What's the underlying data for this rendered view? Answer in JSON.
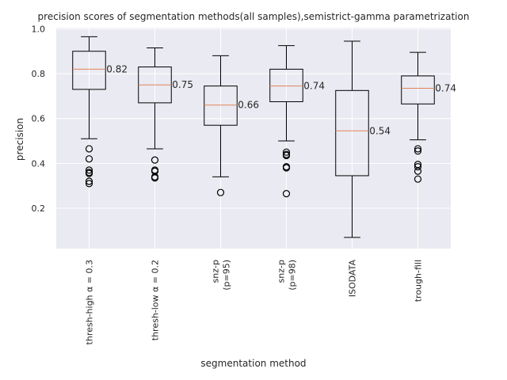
{
  "chart_data": {
    "type": "box",
    "title": "precision scores of segmentation methods(all samples),semistrict-gamma parametrization",
    "xlabel": "segmentation method",
    "ylabel": "precision",
    "ylim": [
      0.02,
      1.005
    ],
    "yticks": [
      "0.2",
      "0.4",
      "0.6",
      "0.8",
      "1.0"
    ],
    "grid": true,
    "style": {
      "background": "#eaeaf2",
      "grid_color": "#ffffff",
      "box_color": "#000000",
      "median_color": "#e0845a"
    },
    "categories": [
      {
        "label": "thresh-high α = 0.3",
        "whisker_low": 0.51,
        "q1": 0.73,
        "median": 0.82,
        "q3": 0.9,
        "whisker_high": 0.965,
        "outliers": [
          0.465,
          0.42,
          0.37,
          0.36,
          0.355,
          0.32,
          0.31
        ],
        "median_label": "0.82"
      },
      {
        "label": "thresh-low α = 0.2",
        "whisker_low": 0.465,
        "q1": 0.67,
        "median": 0.75,
        "q3": 0.83,
        "whisker_high": 0.915,
        "outliers": [
          0.415,
          0.37,
          0.365,
          0.34,
          0.335
        ],
        "median_label": "0.75"
      },
      {
        "label": "snz-p\n(p=95)",
        "whisker_low": 0.34,
        "q1": 0.57,
        "median": 0.66,
        "q3": 0.745,
        "whisker_high": 0.88,
        "outliers": [
          0.27
        ],
        "median_label": "0.66"
      },
      {
        "label": "snz-p\n(p=98)",
        "whisker_low": 0.5,
        "q1": 0.675,
        "median": 0.745,
        "q3": 0.82,
        "whisker_high": 0.925,
        "outliers": [
          0.45,
          0.44,
          0.435,
          0.385,
          0.38,
          0.265
        ],
        "median_label": "0.74"
      },
      {
        "label": "ISODATA",
        "whisker_low": 0.07,
        "q1": 0.345,
        "median": 0.545,
        "q3": 0.725,
        "whisker_high": 0.945,
        "outliers": [],
        "median_label": "0.54"
      },
      {
        "label": "trough-fill",
        "whisker_low": 0.505,
        "q1": 0.665,
        "median": 0.735,
        "q3": 0.79,
        "whisker_high": 0.895,
        "outliers": [
          0.465,
          0.455,
          0.395,
          0.385,
          0.365,
          0.33
        ],
        "median_label": "0.74"
      }
    ]
  }
}
